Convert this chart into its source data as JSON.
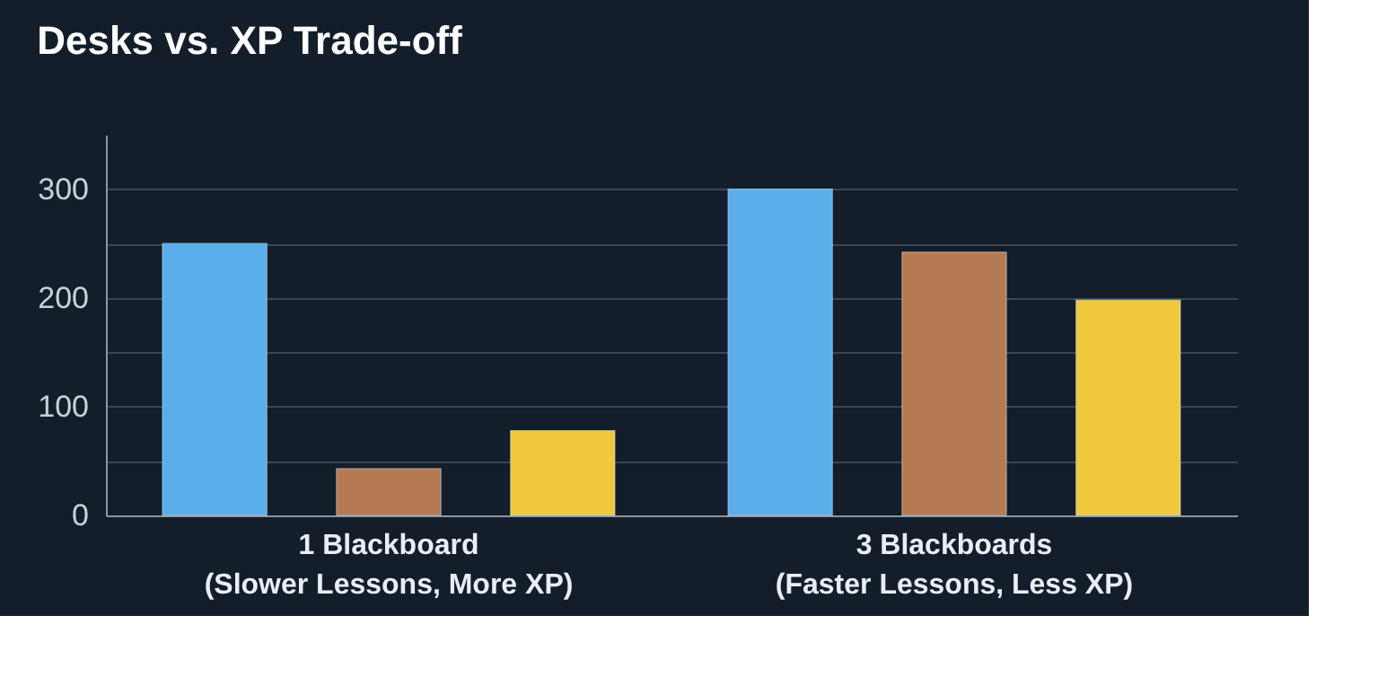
{
  "chart_data": {
    "type": "bar",
    "title": "Desks vs. XP Trade-off",
    "categories": [
      "1 Blackboard\n(Slower Lessons, More XP)",
      "3 Blackboards\n(Faster Lessons, Less XP)"
    ],
    "series": [
      {
        "color": "#5aaeea",
        "values": [
          250,
          300
        ]
      },
      {
        "color": "#b67a52",
        "values": [
          43,
          242
        ]
      },
      {
        "color": "#f0c93e",
        "values": [
          78,
          198
        ]
      }
    ],
    "ylim": [
      0,
      350
    ],
    "yticks": [
      0,
      {
        "value": 50,
        "label": null
      },
      100,
      {
        "value": 150,
        "label": null
      },
      200,
      {
        "value": 250,
        "label": null
      },
      300
    ],
    "grid": true,
    "legend": false
  }
}
